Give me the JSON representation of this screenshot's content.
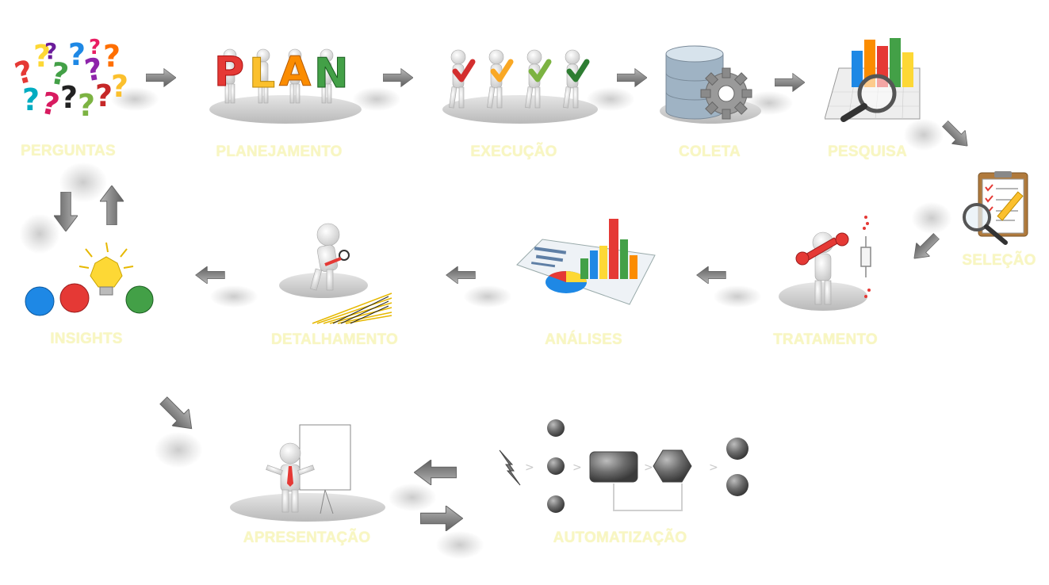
{
  "diagram": {
    "label_color": "#f8f6c2",
    "steps": [
      {
        "id": "perguntas",
        "label": "PERGUNTAS"
      },
      {
        "id": "planejamento",
        "label": "PLANEJAMENTO",
        "sign": "PLAN"
      },
      {
        "id": "execucao",
        "label": "EXECUÇÃO"
      },
      {
        "id": "coleta",
        "label": "COLETA"
      },
      {
        "id": "pesquisa",
        "label": "PESQUISA"
      },
      {
        "id": "selecao",
        "label": "SELEÇÃO"
      },
      {
        "id": "tratamento",
        "label": "TRATAMENTO"
      },
      {
        "id": "analises",
        "label": "ANÁLISES"
      },
      {
        "id": "detalhamento",
        "label": "DETALHAMENTO"
      },
      {
        "id": "insights",
        "label": "INSIGHTS"
      },
      {
        "id": "apresentacao",
        "label": "APRESENTAÇÃO"
      },
      {
        "id": "automatizacao",
        "label": "AUTOMATIZAÇÃO"
      }
    ],
    "icons": {
      "perguntas": "question-marks-icon",
      "planejamento": "plan-figures-icon",
      "execucao": "checkmark-figures-icon",
      "coleta": "database-gear-icon",
      "pesquisa": "magnifier-chart-icon",
      "selecao": "clipboard-magnifier-icon",
      "tratamento": "wrench-figure-icon",
      "analises": "charts-paper-icon",
      "detalhamento": "figure-magnifier-icon",
      "insights": "crumpled-paper-lightbulb-icon",
      "apresentacao": "presenter-flipchart-icon",
      "automatizacao": "workflow-nodes-icon"
    },
    "arrow_color": "#8a8a8a"
  }
}
